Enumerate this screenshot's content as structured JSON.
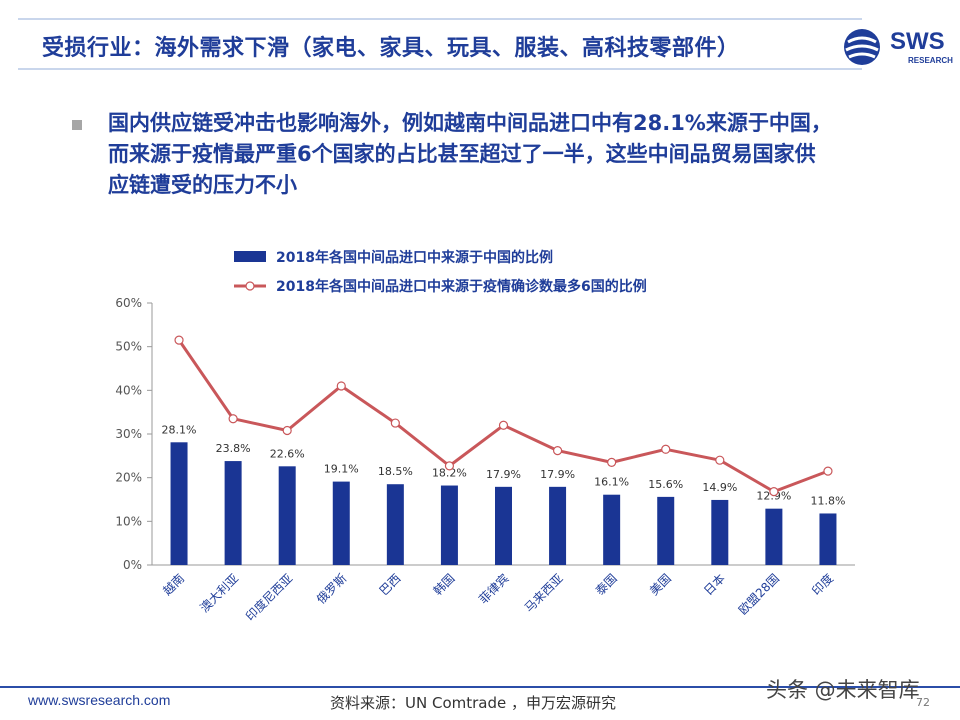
{
  "slide": {
    "title": "受损行业：海外需求下滑（家电、家具、玩具、服装、高科技零部件）",
    "logo_text": "SWS",
    "logo_sub": "RESEARCH",
    "bullet_lines": [
      "国内供应链受冲击也影响海外，例如越南中间品进口中有28.1%来源于中国，",
      "而来源于疫情最严重6个国家的占比甚至超过了一半，这些中间品贸易国家供",
      "应链遭受的压力不小"
    ],
    "footer_url": "www.swsresearch.com",
    "footer_source": "资料来源：UN Comtrade ，申万宏源研究",
    "page_number": "72",
    "watermark": "头条 @未来智库"
  },
  "colors": {
    "bar": "#1a3594",
    "line": "#c9575a",
    "brand": "#1f3d99"
  },
  "chart_data": {
    "type": "bar",
    "categories": [
      "越南",
      "澳大利亚",
      "印度尼西亚",
      "俄罗斯",
      "巴西",
      "韩国",
      "菲律宾",
      "马来西亚",
      "泰国",
      "美国",
      "日本",
      "欧盟28国",
      "印度"
    ],
    "series": [
      {
        "name": "2018年各国中间品进口中来源于中国的比例",
        "type": "bar",
        "values": [
          28.1,
          23.8,
          22.6,
          19.1,
          18.5,
          18.2,
          17.9,
          17.9,
          16.1,
          15.6,
          14.9,
          12.9,
          11.8
        ],
        "labels": [
          "28.1%",
          "23.8%",
          "22.6%",
          "19.1%",
          "18.5%",
          "18.2%",
          "17.9%",
          "17.9%",
          "16.1%",
          "15.6%",
          "14.9%",
          "12.9%",
          "11.8%"
        ]
      },
      {
        "name": "2018年各国中间品进口中来源于疫情确诊数最多6国的比例",
        "type": "line",
        "values": [
          51.5,
          33.5,
          30.8,
          41.0,
          32.5,
          22.7,
          32.0,
          26.2,
          23.5,
          26.5,
          24.0,
          16.8,
          21.5
        ]
      }
    ],
    "ylim": [
      0,
      60
    ],
    "yticks": [
      "0%",
      "10%",
      "20%",
      "30%",
      "40%",
      "50%",
      "60%"
    ],
    "grid": false,
    "legend_position": "top"
  }
}
